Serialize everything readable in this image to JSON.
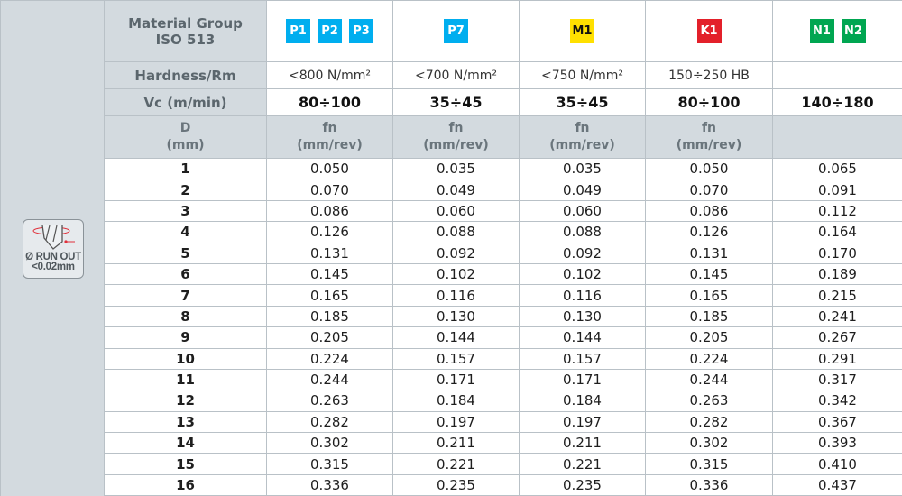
{
  "icon": {
    "name": "run-out-drill-icon",
    "line1": "Ø RUN OUT",
    "line2": "<0.02mm"
  },
  "header": {
    "material_group": "Material Group",
    "iso": "ISO 513",
    "hardness": "Hardness/Rm",
    "vc": "Vc (m/min)",
    "d": "D",
    "d_unit": "(mm)",
    "fn": "fn",
    "fn_unit": "(mm/rev)"
  },
  "columns": [
    {
      "badges": [
        {
          "label": "P1",
          "color": "#00aeef"
        },
        {
          "label": "P2",
          "color": "#00aeef"
        },
        {
          "label": "P3",
          "color": "#00aeef"
        }
      ],
      "hardness": "<800 N/mm²",
      "vc": "80÷100",
      "fn": true
    },
    {
      "badges": [
        {
          "label": "P7",
          "color": "#00aeef"
        }
      ],
      "hardness": "<700 N/mm²",
      "vc": "35÷45",
      "fn": true
    },
    {
      "badges": [
        {
          "label": "M1",
          "color": "#ffe000",
          "text": "#111"
        }
      ],
      "hardness": "<750 N/mm²",
      "vc": "35÷45",
      "fn": true
    },
    {
      "badges": [
        {
          "label": "K1",
          "color": "#e3202a"
        }
      ],
      "hardness": "150÷250 HB",
      "vc": "80÷100",
      "fn": true
    },
    {
      "badges": [
        {
          "label": "N1",
          "color": "#00a651"
        },
        {
          "label": "N2",
          "color": "#00a651"
        }
      ],
      "hardness": "",
      "vc": "140÷180",
      "fn": false
    }
  ],
  "rows": [
    [
      "1",
      "0.050",
      "0.035",
      "0.035",
      "0.050",
      "0.065"
    ],
    [
      "2",
      "0.070",
      "0.049",
      "0.049",
      "0.070",
      "0.091"
    ],
    [
      "3",
      "0.086",
      "0.060",
      "0.060",
      "0.086",
      "0.112"
    ],
    [
      "4",
      "0.126",
      "0.088",
      "0.088",
      "0.126",
      "0.164"
    ],
    [
      "5",
      "0.131",
      "0.092",
      "0.092",
      "0.131",
      "0.170"
    ],
    [
      "6",
      "0.145",
      "0.102",
      "0.102",
      "0.145",
      "0.189"
    ],
    [
      "7",
      "0.165",
      "0.116",
      "0.116",
      "0.165",
      "0.215"
    ],
    [
      "8",
      "0.185",
      "0.130",
      "0.130",
      "0.185",
      "0.241"
    ],
    [
      "9",
      "0.205",
      "0.144",
      "0.144",
      "0.205",
      "0.267"
    ],
    [
      "10",
      "0.224",
      "0.157",
      "0.157",
      "0.224",
      "0.291"
    ],
    [
      "11",
      "0.244",
      "0.171",
      "0.171",
      "0.244",
      "0.317"
    ],
    [
      "12",
      "0.263",
      "0.184",
      "0.184",
      "0.263",
      "0.342"
    ],
    [
      "13",
      "0.282",
      "0.197",
      "0.197",
      "0.282",
      "0.367"
    ],
    [
      "14",
      "0.302",
      "0.211",
      "0.211",
      "0.302",
      "0.393"
    ],
    [
      "15",
      "0.315",
      "0.221",
      "0.221",
      "0.315",
      "0.410"
    ],
    [
      "16",
      "0.336",
      "0.235",
      "0.235",
      "0.336",
      "0.437"
    ]
  ]
}
